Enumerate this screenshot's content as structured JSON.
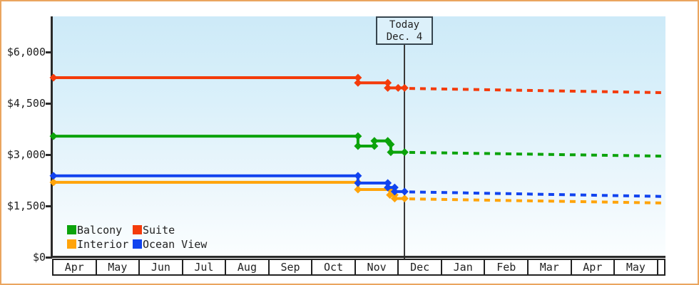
{
  "colors": {
    "frame_border": "#eaa55f",
    "axis": "#2a2a2a",
    "today_line": "#3a3a3a",
    "today_box_border": "#36454f",
    "today_box_bg": "#dcf0fa",
    "plot_bg_top": "#cdeaf8",
    "plot_bg_bottom": "#fbfeff"
  },
  "chart_data": {
    "type": "line",
    "description": "Cruise cabin price history by category with dashed forecast after today",
    "today": {
      "label": "Today",
      "date": "Dec. 4",
      "month_index": 8.13
    },
    "x_axis": {
      "unit": "months_since_april",
      "tick_labels": [
        "Apr",
        "May",
        "Jun",
        "Jul",
        "Aug",
        "Sep",
        "Oct",
        "Nov",
        "Dec",
        "Jan",
        "Feb",
        "Mar",
        "Apr",
        "May"
      ],
      "range": [
        0,
        14.18
      ]
    },
    "y_axis": {
      "tick_labels": [
        "$6,000",
        "$4,500",
        "$3,000",
        "$1,500",
        "$0"
      ],
      "tick_values": [
        6000,
        4500,
        3000,
        1500,
        0
      ],
      "ylim": [
        0,
        7040
      ],
      "grid": false
    },
    "legend": {
      "position": "bottom-left-inside",
      "items": [
        {
          "label": "Balcony",
          "color": "#0ba30b"
        },
        {
          "label": "Suite",
          "color": "#f43b0b"
        },
        {
          "label": "Interior",
          "color": "#ffa40a"
        },
        {
          "label": "Ocean View",
          "color": "#1143ef"
        }
      ]
    },
    "series": [
      {
        "name": "Balcony",
        "color": "#0ba30b",
        "history": [
          [
            0,
            3540
          ],
          [
            7.05,
            3540
          ],
          [
            7.05,
            3250
          ],
          [
            7.43,
            3250
          ],
          [
            7.43,
            3400
          ],
          [
            7.74,
            3400
          ],
          [
            7.81,
            3300
          ],
          [
            7.81,
            3070
          ],
          [
            8.13,
            3070
          ]
        ],
        "forecast": [
          [
            8.24,
            3065
          ],
          [
            14.16,
            2955
          ]
        ]
      },
      {
        "name": "Suite",
        "color": "#f43b0b",
        "history": [
          [
            0,
            5250
          ],
          [
            7.05,
            5250
          ],
          [
            7.05,
            5100
          ],
          [
            7.74,
            5100
          ],
          [
            7.74,
            4950
          ],
          [
            7.98,
            4950
          ],
          [
            8.13,
            4950
          ]
        ],
        "forecast": [
          [
            8.24,
            4935
          ],
          [
            14.16,
            4810
          ]
        ]
      },
      {
        "name": "Interior",
        "color": "#ffa40a",
        "history": [
          [
            0,
            2190
          ],
          [
            7.05,
            2190
          ],
          [
            7.05,
            1980
          ],
          [
            7.79,
            1980
          ],
          [
            7.79,
            1820
          ],
          [
            7.9,
            1820
          ],
          [
            7.9,
            1715
          ],
          [
            8.13,
            1715
          ]
        ],
        "forecast": [
          [
            8.24,
            1705
          ],
          [
            14.16,
            1585
          ]
        ]
      },
      {
        "name": "Ocean View",
        "color": "#1143ef",
        "history": [
          [
            0,
            2380
          ],
          [
            7.05,
            2380
          ],
          [
            7.05,
            2170
          ],
          [
            7.74,
            2170
          ],
          [
            7.74,
            2040
          ],
          [
            7.9,
            2040
          ],
          [
            7.9,
            1920
          ],
          [
            8.13,
            1920
          ]
        ],
        "forecast": [
          [
            8.24,
            1910
          ],
          [
            14.16,
            1775
          ]
        ]
      }
    ]
  }
}
